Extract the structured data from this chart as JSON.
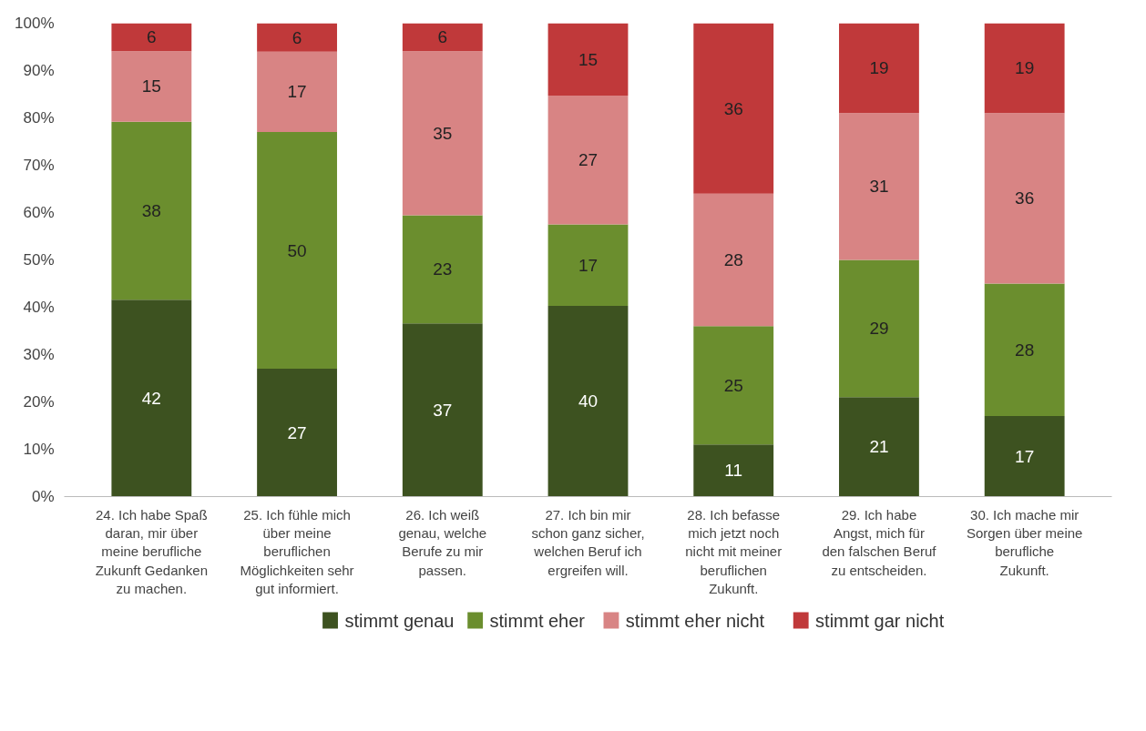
{
  "chart_data": {
    "type": "bar",
    "stacked": true,
    "categories": [
      "24. Ich habe Spaß daran, mir über meine berufliche Zukunft Gedanken zu machen.",
      "25. Ich fühle mich über meine beruflichen Möglichkeiten sehr gut informiert.",
      "26. Ich weiß genau, welche Berufe zu mir passen.",
      "27. Ich bin mir schon ganz sicher, welchen Beruf ich ergreifen will.",
      "28. Ich befasse mich jetzt noch nicht mit meiner beruflichen Zukunft.",
      "29. Ich habe Angst, mich für den falschen Beruf zu entscheiden.",
      "30. Ich mache mir Sorgen über meine berufliche Zukunft."
    ],
    "series": [
      {
        "name": "stimmt genau",
        "color": "#3d5220",
        "values": [
          41.6,
          27,
          36.6,
          40.3,
          11,
          21,
          17
        ],
        "value_labels": [
          "42",
          "27",
          "37",
          "40",
          "11",
          "21",
          "17"
        ]
      },
      {
        "name": "stimmt eher",
        "color": "#6b8e2e",
        "values": [
          37.6,
          50,
          22.8,
          17.2,
          25,
          29,
          28
        ],
        "value_labels": [
          "38",
          "50",
          "23",
          "17",
          "25",
          "29",
          "28"
        ]
      },
      {
        "name": "stimmt eher nicht",
        "color": "#d88484",
        "values": [
          14.9,
          17,
          34.7,
          27.2,
          28,
          31,
          36
        ],
        "value_labels": [
          "15",
          "17",
          "35",
          "27",
          "28",
          "31",
          "36"
        ]
      },
      {
        "name": "stimmt gar nicht",
        "color": "#c0393a",
        "values": [
          5.9,
          6,
          5.9,
          15.3,
          36,
          19,
          19
        ],
        "value_labels": [
          "6",
          "6",
          "6",
          "15",
          "36",
          "19",
          "19"
        ]
      }
    ],
    "ylim": [
      0,
      100
    ],
    "yticks": [
      {
        "value": 0,
        "label": "0%"
      },
      {
        "value": 10,
        "label": "10%"
      },
      {
        "value": 20,
        "label": "20%"
      },
      {
        "value": 30,
        "label": "30%"
      },
      {
        "value": 40,
        "label": "40%"
      },
      {
        "value": 50,
        "label": "50%"
      },
      {
        "value": 60,
        "label": "60%"
      },
      {
        "value": 70,
        "label": "70%"
      },
      {
        "value": 80,
        "label": "80%"
      },
      {
        "value": 90,
        "label": "90%"
      },
      {
        "value": 100,
        "label": "100%"
      }
    ],
    "grid": false,
    "legend": "bottom"
  }
}
